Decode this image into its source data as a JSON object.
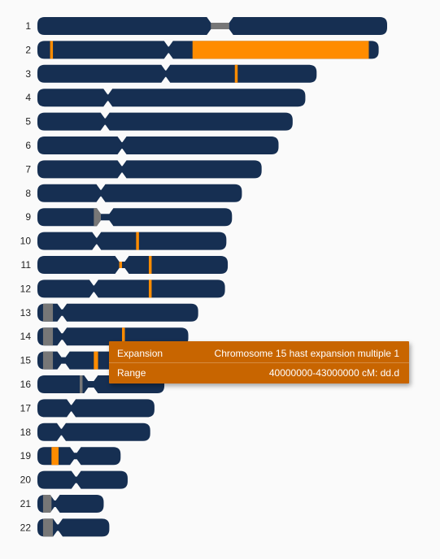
{
  "colors": {
    "chromosome": "#162f52",
    "centromere_gap": "#777777",
    "highlight": "#ff8c00",
    "tooltip_bg": "#c86500",
    "label": "#222222"
  },
  "chromosomes": [
    {
      "label": "1",
      "length_mb": 248,
      "centromere_mb": [
        123,
        136
      ],
      "marks": [
        {
          "start": 123,
          "end": 136,
          "kind": "gap"
        }
      ]
    },
    {
      "label": "2",
      "length_mb": 242,
      "centromere_mb": [
        93,
        93
      ],
      "marks": [
        {
          "start": 9,
          "end": 11,
          "kind": "highlight"
        },
        {
          "start": 110,
          "end": 235,
          "kind": "highlight"
        }
      ]
    },
    {
      "label": "3",
      "length_mb": 198,
      "centromere_mb": [
        91,
        91
      ],
      "marks": [
        {
          "start": 140,
          "end": 142,
          "kind": "highlight"
        }
      ]
    },
    {
      "label": "4",
      "length_mb": 190,
      "centromere_mb": [
        50,
        50
      ],
      "marks": []
    },
    {
      "label": "5",
      "length_mb": 181,
      "centromere_mb": [
        48,
        48
      ],
      "marks": []
    },
    {
      "label": "6",
      "length_mb": 171,
      "centromere_mb": [
        60,
        60
      ],
      "marks": []
    },
    {
      "label": "7",
      "length_mb": 159,
      "centromere_mb": [
        60,
        60
      ],
      "marks": []
    },
    {
      "label": "8",
      "length_mb": 145,
      "centromere_mb": [
        45,
        45
      ],
      "marks": []
    },
    {
      "label": "9",
      "length_mb": 138,
      "centromere_mb": [
        45,
        51
      ],
      "marks": [
        {
          "start": 40,
          "end": 45,
          "kind": "gap"
        }
      ]
    },
    {
      "label": "10",
      "length_mb": 134,
      "centromere_mb": [
        42,
        42
      ],
      "marks": [
        {
          "start": 70,
          "end": 72,
          "kind": "highlight"
        }
      ]
    },
    {
      "label": "11",
      "length_mb": 135,
      "centromere_mb": [
        58,
        62
      ],
      "marks": [
        {
          "start": 58,
          "end": 60,
          "kind": "highlight"
        },
        {
          "start": 79,
          "end": 81,
          "kind": "highlight"
        }
      ]
    },
    {
      "label": "12",
      "length_mb": 133,
      "centromere_mb": [
        40,
        40
      ],
      "marks": [
        {
          "start": 79,
          "end": 81,
          "kind": "highlight"
        }
      ]
    },
    {
      "label": "13",
      "length_mb": 114,
      "centromere_mb": [
        17,
        18
      ],
      "marks": [
        {
          "start": 4,
          "end": 11,
          "kind": "gap"
        }
      ]
    },
    {
      "label": "14",
      "length_mb": 107,
      "centromere_mb": [
        17,
        18
      ],
      "marks": [
        {
          "start": 4,
          "end": 11,
          "kind": "gap"
        },
        {
          "start": 60,
          "end": 62,
          "kind": "highlight"
        }
      ]
    },
    {
      "label": "15",
      "length_mb": 102,
      "centromere_mb": [
        17,
        20
      ],
      "marks": [
        {
          "start": 4,
          "end": 11,
          "kind": "gap"
        },
        {
          "start": 40,
          "end": 43,
          "kind": "highlight"
        }
      ]
    },
    {
      "label": "16",
      "length_mb": 90,
      "centromere_mb": [
        36,
        40
      ],
      "marks": [
        {
          "start": 30,
          "end": 32,
          "kind": "gap"
        }
      ]
    },
    {
      "label": "17",
      "length_mb": 83,
      "centromere_mb": [
        24,
        24
      ],
      "marks": []
    },
    {
      "label": "18",
      "length_mb": 80,
      "centromere_mb": [
        17,
        17
      ],
      "marks": []
    },
    {
      "label": "19",
      "length_mb": 59,
      "centromere_mb": [
        26,
        28
      ],
      "marks": [
        {
          "start": 10,
          "end": 15,
          "kind": "highlight"
        }
      ]
    },
    {
      "label": "20",
      "length_mb": 64,
      "centromere_mb": [
        27,
        28
      ],
      "marks": []
    },
    {
      "label": "21",
      "length_mb": 47,
      "centromere_mb": [
        12,
        13
      ],
      "marks": [
        {
          "start": 4,
          "end": 10,
          "kind": "gap"
        }
      ]
    },
    {
      "label": "22",
      "length_mb": 51,
      "centromere_mb": [
        14,
        15
      ],
      "marks": [
        {
          "start": 4,
          "end": 11,
          "kind": "gap"
        }
      ]
    }
  ],
  "tooltip": {
    "rows": [
      {
        "key": "Expansion",
        "value": "Chromosome 15 hast expansion multiple 1"
      },
      {
        "key": "Range",
        "value": "40000000-43000000 cM: dd.d"
      }
    ]
  }
}
